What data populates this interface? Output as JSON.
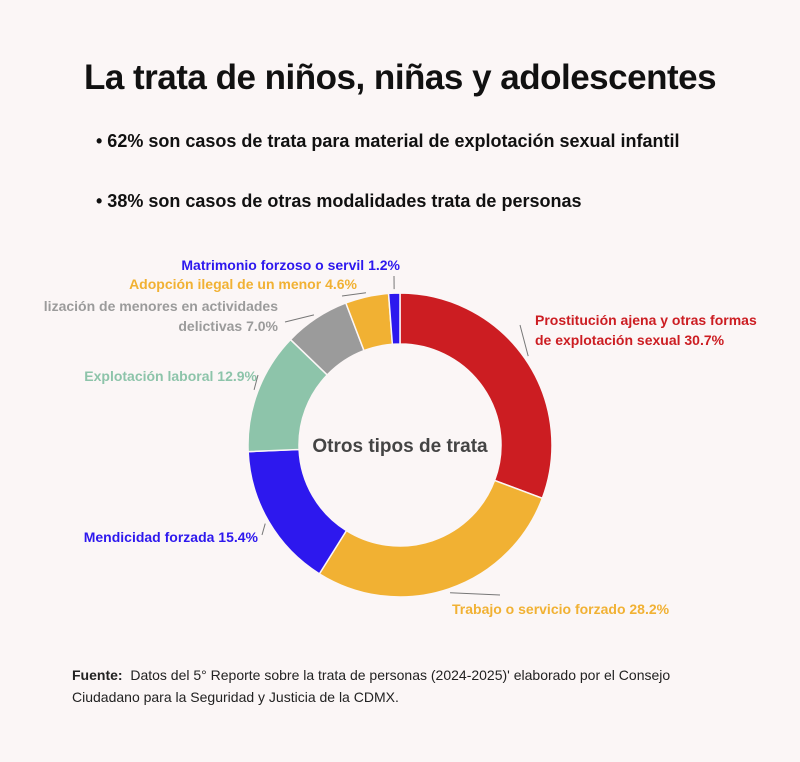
{
  "title": "La trata de niños, niñas y adolescentes",
  "bullets": [
    "• 62% son casos de trata para material de explotación sexual infantil",
    "• 38% son casos de otras modalidades trata de personas"
  ],
  "chart_data": {
    "type": "pie",
    "donut": true,
    "center_label": "Otros tipos de trata",
    "slices": [
      {
        "label": "Prostitución ajena y otras formas de explotación sexual",
        "value": 30.7,
        "display": "Prostitución ajena y otras formas\nde explotación sexual 30.7%",
        "color": "#cc1d22"
      },
      {
        "label": "Trabajo o servicio forzado",
        "value": 28.2,
        "display": "Trabajo o servicio forzado 28.2%",
        "color": "#f1b133"
      },
      {
        "label": "Mendicidad forzada",
        "value": 15.4,
        "display": "Mendicidad forzada 15.4%",
        "color": "#2d18ee"
      },
      {
        "label": "Explotación laboral",
        "value": 12.9,
        "display": "Explotación laboral 12.9%",
        "color": "#8dc4aa"
      },
      {
        "label": "Utilización de menores en actividades delictivas",
        "value": 7.0,
        "display": "lización de menores en actividades\ndelictivas 7.0%",
        "color": "#9b9b9b"
      },
      {
        "label": "Adopción ilegal de un menor",
        "value": 4.6,
        "display": "Adopción ilegal de un menor 4.6%",
        "color": "#f1b133"
      },
      {
        "label": "Matrimonio forzoso o servil",
        "value": 1.2,
        "display": "Matrimonio forzoso o servil 1.2%",
        "color": "#2d18ee"
      }
    ]
  },
  "source": {
    "label": "Fuente:",
    "text": "Datos del 5° Reporte sobre la trata de personas (2024-2025)' elaborado por el Consejo Ciudadano para la Seguridad y Justicia de la CDMX."
  }
}
